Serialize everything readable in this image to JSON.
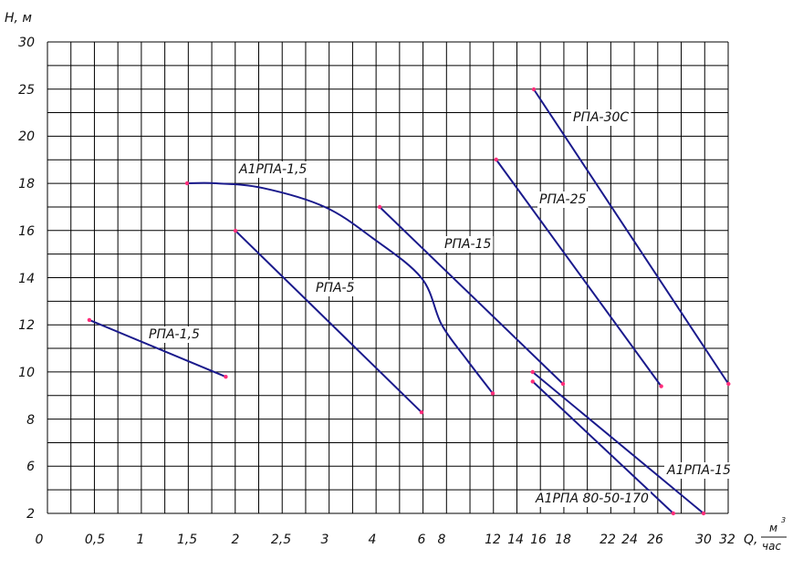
{
  "chart_data": {
    "type": "line",
    "y_axis_label": "H, м",
    "x_axis_label": "Q,",
    "x_axis_unit_num": "м",
    "x_axis_unit_sup": "3",
    "x_axis_unit_den": "час",
    "y_ticks": [
      "30",
      "25",
      "20",
      "18",
      "16",
      "14",
      "12",
      "10",
      "8",
      "6",
      "2"
    ],
    "x_ticks": [
      "0",
      "0,5",
      "1",
      "1,5",
      "2",
      "2,5",
      "3",
      "4",
      "6",
      "8",
      "12",
      "14",
      "16",
      "18",
      "22",
      "24",
      "26",
      "30",
      "32"
    ],
    "grid": true,
    "colors": {
      "curve": "#1a1a8c",
      "point": "#ff2d7a",
      "grid": "#000000"
    },
    "series": [
      {
        "name": "РПА-1,5",
        "points": [
          [
            0.45,
            12.2
          ],
          [
            1.9,
            9.8
          ]
        ]
      },
      {
        "name": "А1РПА-1,5",
        "points": [
          [
            1.5,
            18.0
          ],
          [
            1.8,
            18.0
          ],
          [
            2.3,
            17.8
          ],
          [
            3.0,
            17.0
          ],
          [
            4.0,
            15.7
          ],
          [
            6.0,
            14.0
          ],
          [
            8.0,
            12.0
          ],
          [
            10.0,
            10.5
          ],
          [
            12.0,
            9.1
          ]
        ]
      },
      {
        "name": "РПА-5",
        "points": [
          [
            2.0,
            16.0
          ],
          [
            6.0,
            8.3
          ]
        ]
      },
      {
        "name": "РПА-15",
        "points": [
          [
            4.3,
            17.0
          ],
          [
            18.0,
            9.5
          ]
        ]
      },
      {
        "name": "РПА-25",
        "points": [
          [
            12.3,
            19.0
          ],
          [
            26.5,
            9.4
          ]
        ]
      },
      {
        "name": "РПА-30С",
        "points": [
          [
            15.6,
            25.0
          ],
          [
            32.1,
            9.5
          ]
        ]
      },
      {
        "name": "А1РПА-15",
        "points": [
          [
            15.5,
            10.0
          ],
          [
            30.0,
            2.0
          ]
        ]
      },
      {
        "name": "А1РПА 80-50-170",
        "points": [
          [
            15.5,
            9.6
          ],
          [
            27.5,
            2.0
          ]
        ]
      }
    ]
  }
}
